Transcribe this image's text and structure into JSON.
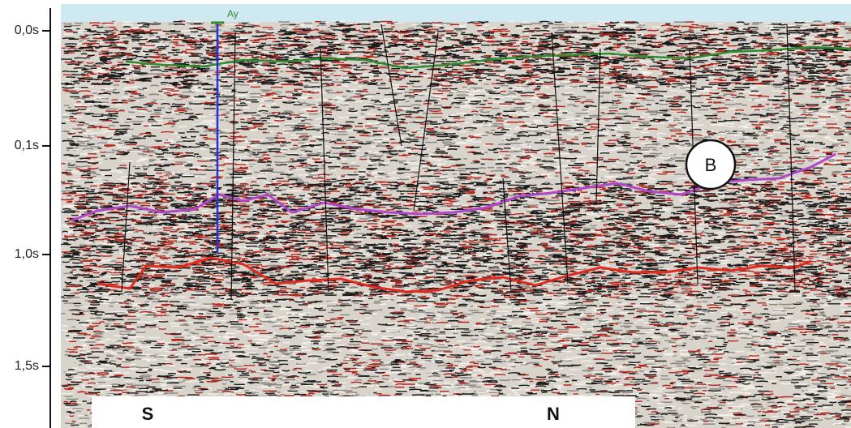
{
  "axis": {
    "ticks": [
      "0,0s",
      "0,1s",
      "1,0s",
      "1,5s"
    ]
  },
  "well_label": "Ay",
  "marker": "B",
  "directions": {
    "left": "S",
    "right": "N"
  }
}
